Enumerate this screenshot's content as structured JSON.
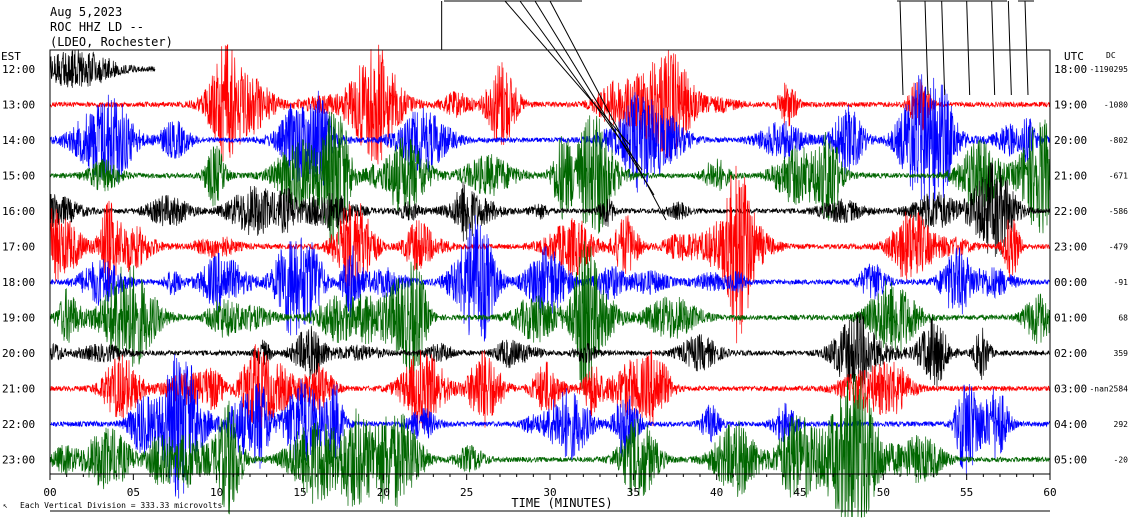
{
  "header": {
    "date": "Aug 5,2023",
    "station": "ROC HHZ LD --",
    "network": "(LDEO, Rochester)"
  },
  "labels": {
    "left_zone": "EST",
    "right_zone": "UTC",
    "dc_header": "DC",
    "xlabel": "TIME (MINUTES)",
    "footer": "Each Vertical Division = 333.33 microvolts"
  },
  "colors": {
    "black": "#000000",
    "red": "#ff0000",
    "blue": "#0000ff",
    "green": "#006600"
  },
  "chart_data": {
    "type": "line",
    "title": "",
    "xlabel": "TIME (MINUTES)",
    "xlim": [
      0,
      60
    ],
    "x_ticks": [
      "00",
      "05",
      "10",
      "15",
      "20",
      "25",
      "30",
      "35",
      "40",
      "45",
      "50",
      "55",
      "60"
    ],
    "color_cycle": [
      "black",
      "red",
      "blue",
      "green"
    ],
    "rows": [
      {
        "est": "12:00",
        "utc": "18:00",
        "dc": "-1190295",
        "color": "black",
        "trace_end_min": 6.3,
        "activity": 0.4
      },
      {
        "est": "13:00",
        "utc": "19:00",
        "dc": "-1080",
        "color": "red",
        "trace_end_min": 60,
        "activity": 0.9
      },
      {
        "est": "14:00",
        "utc": "20:00",
        "dc": "-802",
        "color": "blue",
        "trace_end_min": 60,
        "activity": 1.0
      },
      {
        "est": "15:00",
        "utc": "21:00",
        "dc": "-671",
        "color": "green",
        "trace_end_min": 60,
        "activity": 1.0
      },
      {
        "est": "16:00",
        "utc": "22:00",
        "dc": "-586",
        "color": "black",
        "trace_end_min": 60,
        "activity": 0.7
      },
      {
        "est": "17:00",
        "utc": "23:00",
        "dc": "-479",
        "color": "red",
        "trace_end_min": 60,
        "activity": 1.0
      },
      {
        "est": "18:00",
        "utc": "00:00",
        "dc": "-91",
        "color": "blue",
        "trace_end_min": 60,
        "activity": 1.0
      },
      {
        "est": "19:00",
        "utc": "01:00",
        "dc": "68",
        "color": "green",
        "trace_end_min": 60,
        "activity": 1.0
      },
      {
        "est": "20:00",
        "utc": "02:00",
        "dc": "359",
        "color": "black",
        "trace_end_min": 60,
        "activity": 0.7
      },
      {
        "est": "21:00",
        "utc": "03:00",
        "dc": "-nan2584",
        "color": "red",
        "trace_end_min": 60,
        "activity": 1.0
      },
      {
        "est": "22:00",
        "utc": "04:00",
        "dc": "292",
        "color": "blue",
        "trace_end_min": 60,
        "activity": 1.0
      },
      {
        "est": "23:00",
        "utc": "05:00",
        "dc": "-20",
        "color": "green",
        "trace_end_min": 60,
        "activity": 1.1
      }
    ],
    "marker_minutes": [
      23.5,
      27.5,
      29.0,
      30.5,
      32.0,
      51.0,
      52.5,
      53.5,
      55.0,
      56.5,
      57.5,
      58.5
    ]
  }
}
